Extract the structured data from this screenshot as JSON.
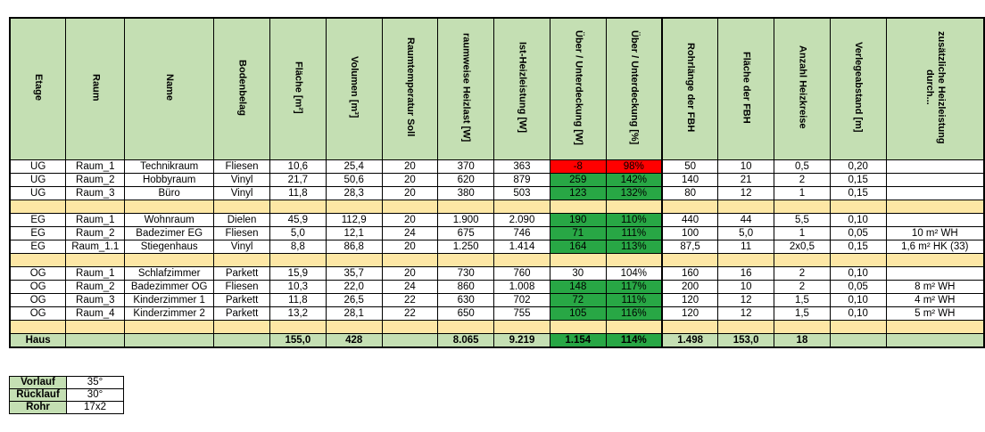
{
  "headers": [
    "Etage",
    "Raum",
    "Name",
    "Bodenbelag",
    "Fläche [m²]",
    "Volumen [m³]",
    "Raumtemperatur Soll",
    "raumweise Heizlast [W]",
    "Ist-Heizleistung [W]",
    "Über / Unterdeckung [W]",
    "Über / Unterdeckung [%]",
    "Rohrlänge der FBH",
    "Fläche der FBH",
    "Anzahl Heizkreise",
    "Verlegeabstand [m]",
    "zusätzliche Heizleistung durch..."
  ],
  "rows": [
    {
      "type": "data",
      "cells": [
        "UG",
        "Raum_1",
        "Technikraum",
        "Fliesen",
        "10,6",
        "25,4",
        "20",
        "370",
        "363",
        "-8",
        "98%",
        "50",
        "10",
        "0,5",
        "0,20",
        ""
      ],
      "status": [
        "red",
        "red"
      ]
    },
    {
      "type": "data",
      "cells": [
        "UG",
        "Raum_2",
        "Hobbyraum",
        "Vinyl",
        "21,7",
        "50,6",
        "20",
        "620",
        "879",
        "259",
        "142%",
        "140",
        "21",
        "2",
        "0,15",
        ""
      ],
      "status": [
        "green",
        "green"
      ]
    },
    {
      "type": "data",
      "cells": [
        "UG",
        "Raum_3",
        "Büro",
        "Vinyl",
        "11,8",
        "28,3",
        "20",
        "380",
        "503",
        "123",
        "132%",
        "80",
        "12",
        "1",
        "0,15",
        ""
      ],
      "status": [
        "green",
        "green"
      ]
    },
    {
      "type": "sep"
    },
    {
      "type": "data",
      "cells": [
        "EG",
        "Raum_1",
        "Wohnraum",
        "Dielen",
        "45,9",
        "112,9",
        "20",
        "1.900",
        "2.090",
        "190",
        "110%",
        "440",
        "44",
        "5,5",
        "0,10",
        ""
      ],
      "status": [
        "green",
        "green"
      ]
    },
    {
      "type": "data",
      "cells": [
        "EG",
        "Raum_2",
        "Badezimer EG",
        "Fliesen",
        "5,0",
        "12,1",
        "24",
        "675",
        "746",
        "71",
        "111%",
        "100",
        "5,0",
        "1",
        "0,05",
        "10 m² WH"
      ],
      "status": [
        "green",
        "green"
      ]
    },
    {
      "type": "data",
      "cells": [
        "EG",
        "Raum_1.1",
        "Stiegenhaus",
        "Vinyl",
        "8,8",
        "86,8",
        "20",
        "1.250",
        "1.414",
        "164",
        "113%",
        "87,5",
        "11",
        "2x0,5",
        "0,15",
        "1,6 m² HK (33)"
      ],
      "status": [
        "green",
        "green"
      ]
    },
    {
      "type": "sep"
    },
    {
      "type": "data",
      "cells": [
        "OG",
        "Raum_1",
        "Schlafzimmer",
        "Parkett",
        "15,9",
        "35,7",
        "20",
        "730",
        "760",
        "30",
        "104%",
        "160",
        "16",
        "2",
        "0,10",
        ""
      ],
      "status": [
        "",
        ""
      ]
    },
    {
      "type": "data",
      "cells": [
        "OG",
        "Raum_2",
        "Badezimmer OG",
        "Fliesen",
        "10,3",
        "22,0",
        "24",
        "860",
        "1.008",
        "148",
        "117%",
        "200",
        "10",
        "2",
        "0,05",
        "8 m² WH"
      ],
      "status": [
        "green",
        "green"
      ]
    },
    {
      "type": "data",
      "cells": [
        "OG",
        "Raum_3",
        "Kinderzimmer 1",
        "Parkett",
        "11,8",
        "26,5",
        "22",
        "630",
        "702",
        "72",
        "111%",
        "120",
        "12",
        "1,5",
        "0,10",
        "4 m² WH"
      ],
      "status": [
        "green",
        "green"
      ]
    },
    {
      "type": "data",
      "cells": [
        "OG",
        "Raum_4",
        "Kinderzimmer 2",
        "Parkett",
        "13,2",
        "28,1",
        "22",
        "650",
        "755",
        "105",
        "116%",
        "120",
        "12",
        "1,5",
        "0,10",
        "5 m² WH"
      ],
      "status": [
        "green",
        "green"
      ]
    },
    {
      "type": "sep"
    },
    {
      "type": "sum",
      "cells": [
        "Haus",
        "",
        "",
        "",
        "155,0",
        "428",
        "",
        "8.065",
        "9.219",
        "1.154",
        "114%",
        "1.498",
        "153,0",
        "18",
        "",
        ""
      ],
      "status": [
        "green",
        "green"
      ]
    }
  ],
  "legend": [
    {
      "key": "Vorlauf",
      "value": "35°"
    },
    {
      "key": "Rücklauf",
      "value": "30°"
    },
    {
      "key": "Rohr",
      "value": "17x2"
    }
  ],
  "colors": {
    "header_bg": "#c4dfb3",
    "separator_bg": "#fde7a5",
    "red": "#ff0000",
    "green": "#28a745"
  }
}
